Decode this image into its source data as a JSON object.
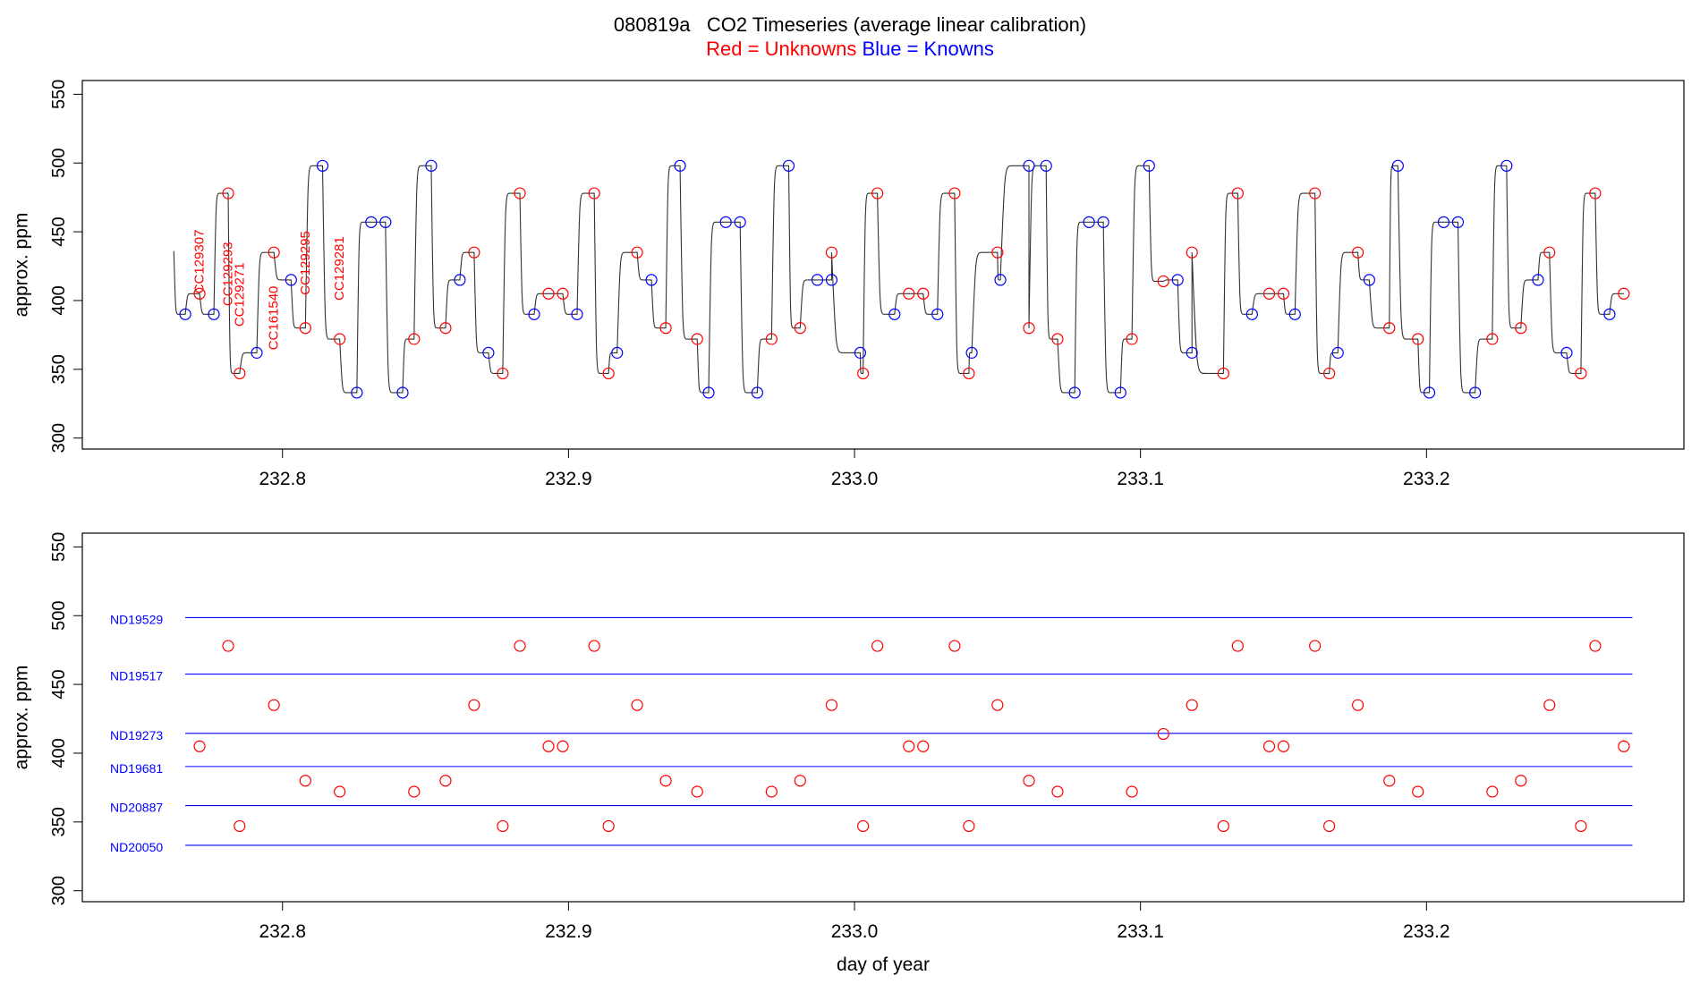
{
  "title": {
    "main": "080819a   CO2 Timeseries (average linear calibration)",
    "legend_red": "Red = Unknowns",
    "legend_blue": "Blue = Knowns"
  },
  "colors": {
    "unknown": "#ff0000",
    "known": "#0000ff",
    "trace": "#333333",
    "axis": "#000000"
  },
  "chart_data": [
    {
      "type": "line",
      "panel": "top",
      "xlabel": "",
      "ylabel": "approx. ppm",
      "xlim": [
        232.73,
        233.29
      ],
      "ylim": [
        292,
        560
      ],
      "x_ticks": [
        "232.8",
        "232.9",
        "233.0",
        "233.1",
        "233.2"
      ],
      "y_ticks": [
        "300",
        "350",
        "400",
        "450",
        "500",
        "550"
      ],
      "trace": {
        "start": [
          232.762,
          436
        ],
        "end": [
          233.267,
          405
        ]
      },
      "knowns": {
        "x": [
          232.766,
          232.776,
          232.791,
          232.803,
          232.814,
          232.826,
          232.831,
          232.836,
          232.842,
          232.852,
          232.862,
          232.872,
          232.888,
          232.903,
          232.917,
          232.929,
          232.939,
          232.949,
          232.955,
          232.96,
          232.966,
          232.977,
          232.987,
          232.992,
          233.002,
          233.014,
          233.029,
          233.041,
          233.051,
          233.061,
          233.067,
          233.077,
          233.082,
          233.087,
          233.093,
          233.103,
          233.113,
          233.118,
          233.139,
          233.154,
          233.169,
          233.18,
          233.19,
          233.201,
          233.206,
          233.211,
          233.217,
          233.228,
          233.239,
          233.249,
          233.264
        ],
        "y": [
          390,
          390,
          362,
          415,
          498,
          333,
          457,
          457,
          333,
          498,
          415,
          362,
          390,
          390,
          362,
          415,
          498,
          333,
          457,
          457,
          333,
          498,
          415,
          415,
          362,
          390,
          390,
          362,
          415,
          498,
          498,
          333,
          457,
          457,
          333,
          498,
          415,
          362,
          390,
          390,
          362,
          415,
          498,
          333,
          457,
          457,
          333,
          498,
          415,
          362,
          390
        ]
      },
      "unknowns": {
        "x": [
          232.771,
          232.781,
          232.785,
          232.797,
          232.808,
          232.82,
          232.846,
          232.857,
          232.867,
          232.877,
          232.883,
          232.893,
          232.898,
          232.909,
          232.914,
          232.924,
          232.934,
          232.945,
          232.971,
          232.981,
          232.992,
          233.003,
          233.008,
          233.019,
          233.024,
          233.035,
          233.04,
          233.05,
          233.061,
          233.071,
          233.097,
          233.108,
          233.118,
          233.129,
          233.134,
          233.145,
          233.15,
          233.161,
          233.166,
          233.176,
          233.187,
          233.197,
          233.223,
          233.233,
          233.243,
          233.254,
          233.259,
          233.269
        ],
        "y": [
          405,
          478,
          347,
          435,
          380,
          372,
          372,
          380,
          435,
          347,
          478,
          405,
          405,
          478,
          347,
          435,
          380,
          372,
          372,
          380,
          435,
          347,
          478,
          405,
          405,
          478,
          347,
          435,
          380,
          372,
          372,
          414,
          435,
          347,
          478,
          405,
          405,
          478,
          347,
          435,
          380,
          372,
          372,
          380,
          435,
          347,
          478,
          405
        ]
      },
      "annotations": [
        {
          "text": "CC129307",
          "x": 232.771,
          "y": 405
        },
        {
          "text": "CC129293",
          "x": 232.781,
          "y": 396
        },
        {
          "text": "CC129271",
          "x": 232.785,
          "y": 381
        },
        {
          "text": "CC161540",
          "x": 232.797,
          "y": 364
        },
        {
          "text": "CC129295",
          "x": 232.808,
          "y": 404
        },
        {
          "text": "CC129281",
          "x": 232.82,
          "y": 400
        }
      ]
    },
    {
      "type": "scatter",
      "panel": "bottom",
      "xlabel": "day of year",
      "ylabel": "approx. ppm",
      "xlim": [
        232.73,
        233.29
      ],
      "ylim": [
        292,
        560
      ],
      "x_ticks": [
        "232.8",
        "232.9",
        "233.0",
        "233.1",
        "233.2"
      ],
      "y_ticks": [
        "300",
        "350",
        "400",
        "450",
        "500",
        "550"
      ],
      "reference_lines": [
        {
          "name": "ND19529",
          "y": 498.6
        },
        {
          "name": "ND19517",
          "y": 457.5
        },
        {
          "name": "ND19273",
          "y": 414.4
        },
        {
          "name": "ND19681",
          "y": 390.3
        },
        {
          "name": "ND20887",
          "y": 361.9
        },
        {
          "name": "ND20050",
          "y": 333.0
        }
      ],
      "reference_x": [
        232.766,
        233.272
      ],
      "unknowns": {
        "x": [
          232.771,
          232.781,
          232.785,
          232.797,
          232.808,
          232.82,
          232.846,
          232.857,
          232.867,
          232.877,
          232.883,
          232.893,
          232.898,
          232.909,
          232.914,
          232.924,
          232.934,
          232.945,
          232.971,
          232.981,
          232.992,
          233.003,
          233.008,
          233.019,
          233.024,
          233.035,
          233.04,
          233.05,
          233.061,
          233.071,
          233.097,
          233.108,
          233.118,
          233.129,
          233.134,
          233.145,
          233.15,
          233.161,
          233.166,
          233.176,
          233.187,
          233.197,
          233.223,
          233.233,
          233.243,
          233.254,
          233.259,
          233.269
        ],
        "y": [
          405,
          478,
          347,
          435,
          380,
          372,
          372,
          380,
          435,
          347,
          478,
          405,
          405,
          478,
          347,
          435,
          380,
          372,
          372,
          380,
          435,
          347,
          478,
          405,
          405,
          478,
          347,
          435,
          380,
          372,
          372,
          414,
          435,
          347,
          478,
          405,
          405,
          478,
          347,
          435,
          380,
          372,
          372,
          380,
          435,
          347,
          478,
          405
        ]
      }
    }
  ]
}
